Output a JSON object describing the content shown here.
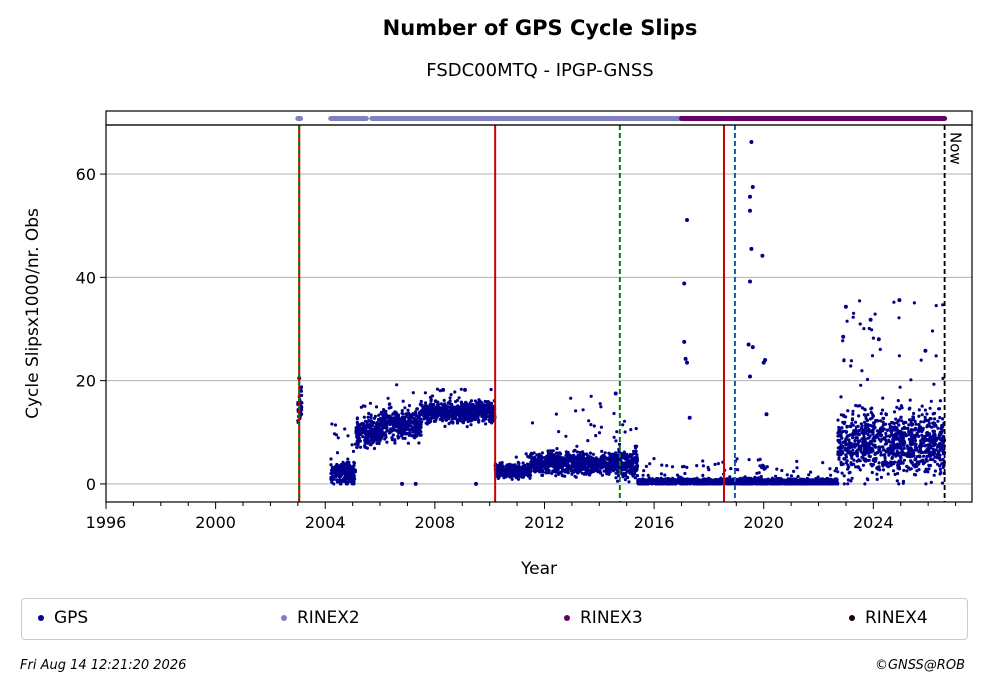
{
  "title": "Number of GPS Cycle Slips",
  "subtitle": "FSDC00MTQ - IPGP-GNSS",
  "footer": {
    "timestamp": "Fri Aug 14 12:21:20 2026",
    "credit": "©GNSS@ROB"
  },
  "colors": {
    "gps": "#00008b",
    "rinex2": "#8080c0",
    "rinex3": "#660066",
    "rinex4": "#1a0010",
    "red_line": "#cc0000",
    "green_dashed": "#008000",
    "blue_dashed": "#1060b0"
  },
  "chart_data": {
    "type": "scatter",
    "title": "Number of GPS Cycle Slips",
    "subtitle": "FSDC00MTQ - IPGP-GNSS",
    "xlabel": "Year",
    "ylabel": "Cycle Slipsx1000/nr. Obs",
    "xlim": [
      1996,
      2027.6
    ],
    "ylim": [
      -3.5,
      69.5
    ],
    "xticks": [
      "1996",
      "2000",
      "2004",
      "2008",
      "2012",
      "2016",
      "2020",
      "2024"
    ],
    "yticks": [
      "0",
      "20",
      "40",
      "60"
    ],
    "grid": "y",
    "legend": [
      "GPS",
      "RINEX2",
      "RINEX3",
      "RINEX4"
    ],
    "legend_placement": "bottom",
    "now_label": "Now",
    "now_year": 2026.6,
    "vertical_lines": [
      {
        "year": 2003.05,
        "style": "solid",
        "color": "red"
      },
      {
        "year": 2003.05,
        "style": "dashed",
        "color": "green"
      },
      {
        "year": 2010.2,
        "style": "solid",
        "color": "red"
      },
      {
        "year": 2014.75,
        "style": "dashed",
        "color": "green"
      },
      {
        "year": 2018.55,
        "style": "solid",
        "color": "red"
      },
      {
        "year": 2018.95,
        "style": "dashed",
        "color": "blue"
      }
    ],
    "availability_bars": [
      {
        "series": "RINEX2",
        "segments": [
          [
            2003.0,
            2003.1
          ],
          [
            2004.2,
            2005.5
          ],
          [
            2005.7,
            2017.0
          ]
        ]
      },
      {
        "series": "RINEX3",
        "segments": [
          [
            2017.0,
            2026.6
          ]
        ]
      }
    ],
    "series": [
      {
        "name": "GPS",
        "segments": [
          {
            "start": 2003.0,
            "end": 2003.15,
            "median": 15,
            "spread": 3,
            "maxv": 20.5
          },
          {
            "start": 2004.2,
            "end": 2005.1,
            "median": 2,
            "spread": 2,
            "maxv": 12
          },
          {
            "start": 2005.1,
            "end": 2006.0,
            "median": 10,
            "spread": 2.5,
            "maxv": 16
          },
          {
            "start": 2006.0,
            "end": 2007.5,
            "median": 11.5,
            "spread": 3,
            "maxv": 19.5
          },
          {
            "start": 2007.5,
            "end": 2010.2,
            "median": 14,
            "spread": 2,
            "maxv": 18.5
          },
          {
            "start": 2010.2,
            "end": 2011.5,
            "median": 2.5,
            "spread": 1.2,
            "maxv": 6
          },
          {
            "start": 2011.5,
            "end": 2014.6,
            "median": 4,
            "spread": 2,
            "maxv": 17.5
          },
          {
            "start": 2014.6,
            "end": 2015.4,
            "median": 4,
            "spread": 3,
            "maxv": 12.5
          },
          {
            "start": 2015.4,
            "end": 2022.7,
            "median": 0.4,
            "spread": 0.6,
            "maxv": 5
          },
          {
            "start": 2022.7,
            "end": 2026.6,
            "median": 8,
            "spread": 6,
            "maxv": 35.5
          }
        ],
        "outliers": [
          [
            2017.1,
            38.8
          ],
          [
            2017.2,
            51.1
          ],
          [
            2017.1,
            27.5
          ],
          [
            2017.15,
            24.2
          ],
          [
            2017.2,
            23.5
          ],
          [
            2017.3,
            12.8
          ],
          [
            2019.5,
            52.9
          ],
          [
            2019.55,
            66.2
          ],
          [
            2019.6,
            57.5
          ],
          [
            2019.5,
            55.6
          ],
          [
            2019.55,
            45.5
          ],
          [
            2019.5,
            39.2
          ],
          [
            2019.45,
            27
          ],
          [
            2019.6,
            26.5
          ],
          [
            2019.5,
            20.8
          ],
          [
            2019.95,
            44.2
          ],
          [
            2020.05,
            24
          ],
          [
            2020.0,
            23.5
          ],
          [
            2020.1,
            13.5
          ],
          [
            2014.6,
            17.5
          ],
          [
            2023.0,
            34.3
          ],
          [
            2023.9,
            31.8
          ],
          [
            2024.95,
            35.6
          ],
          [
            2022.9,
            28.5
          ],
          [
            2024.2,
            28
          ],
          [
            2025.9,
            25.8
          ],
          [
            2003.05,
            20.5
          ],
          [
            2006.8,
            0
          ],
          [
            2007.3,
            0
          ],
          [
            2009.5,
            0
          ],
          [
            2008.3,
            18.2
          ],
          [
            2009.1,
            18.2
          ]
        ]
      },
      {
        "name": "RINEX2"
      },
      {
        "name": "RINEX3"
      },
      {
        "name": "RINEX4"
      }
    ]
  }
}
